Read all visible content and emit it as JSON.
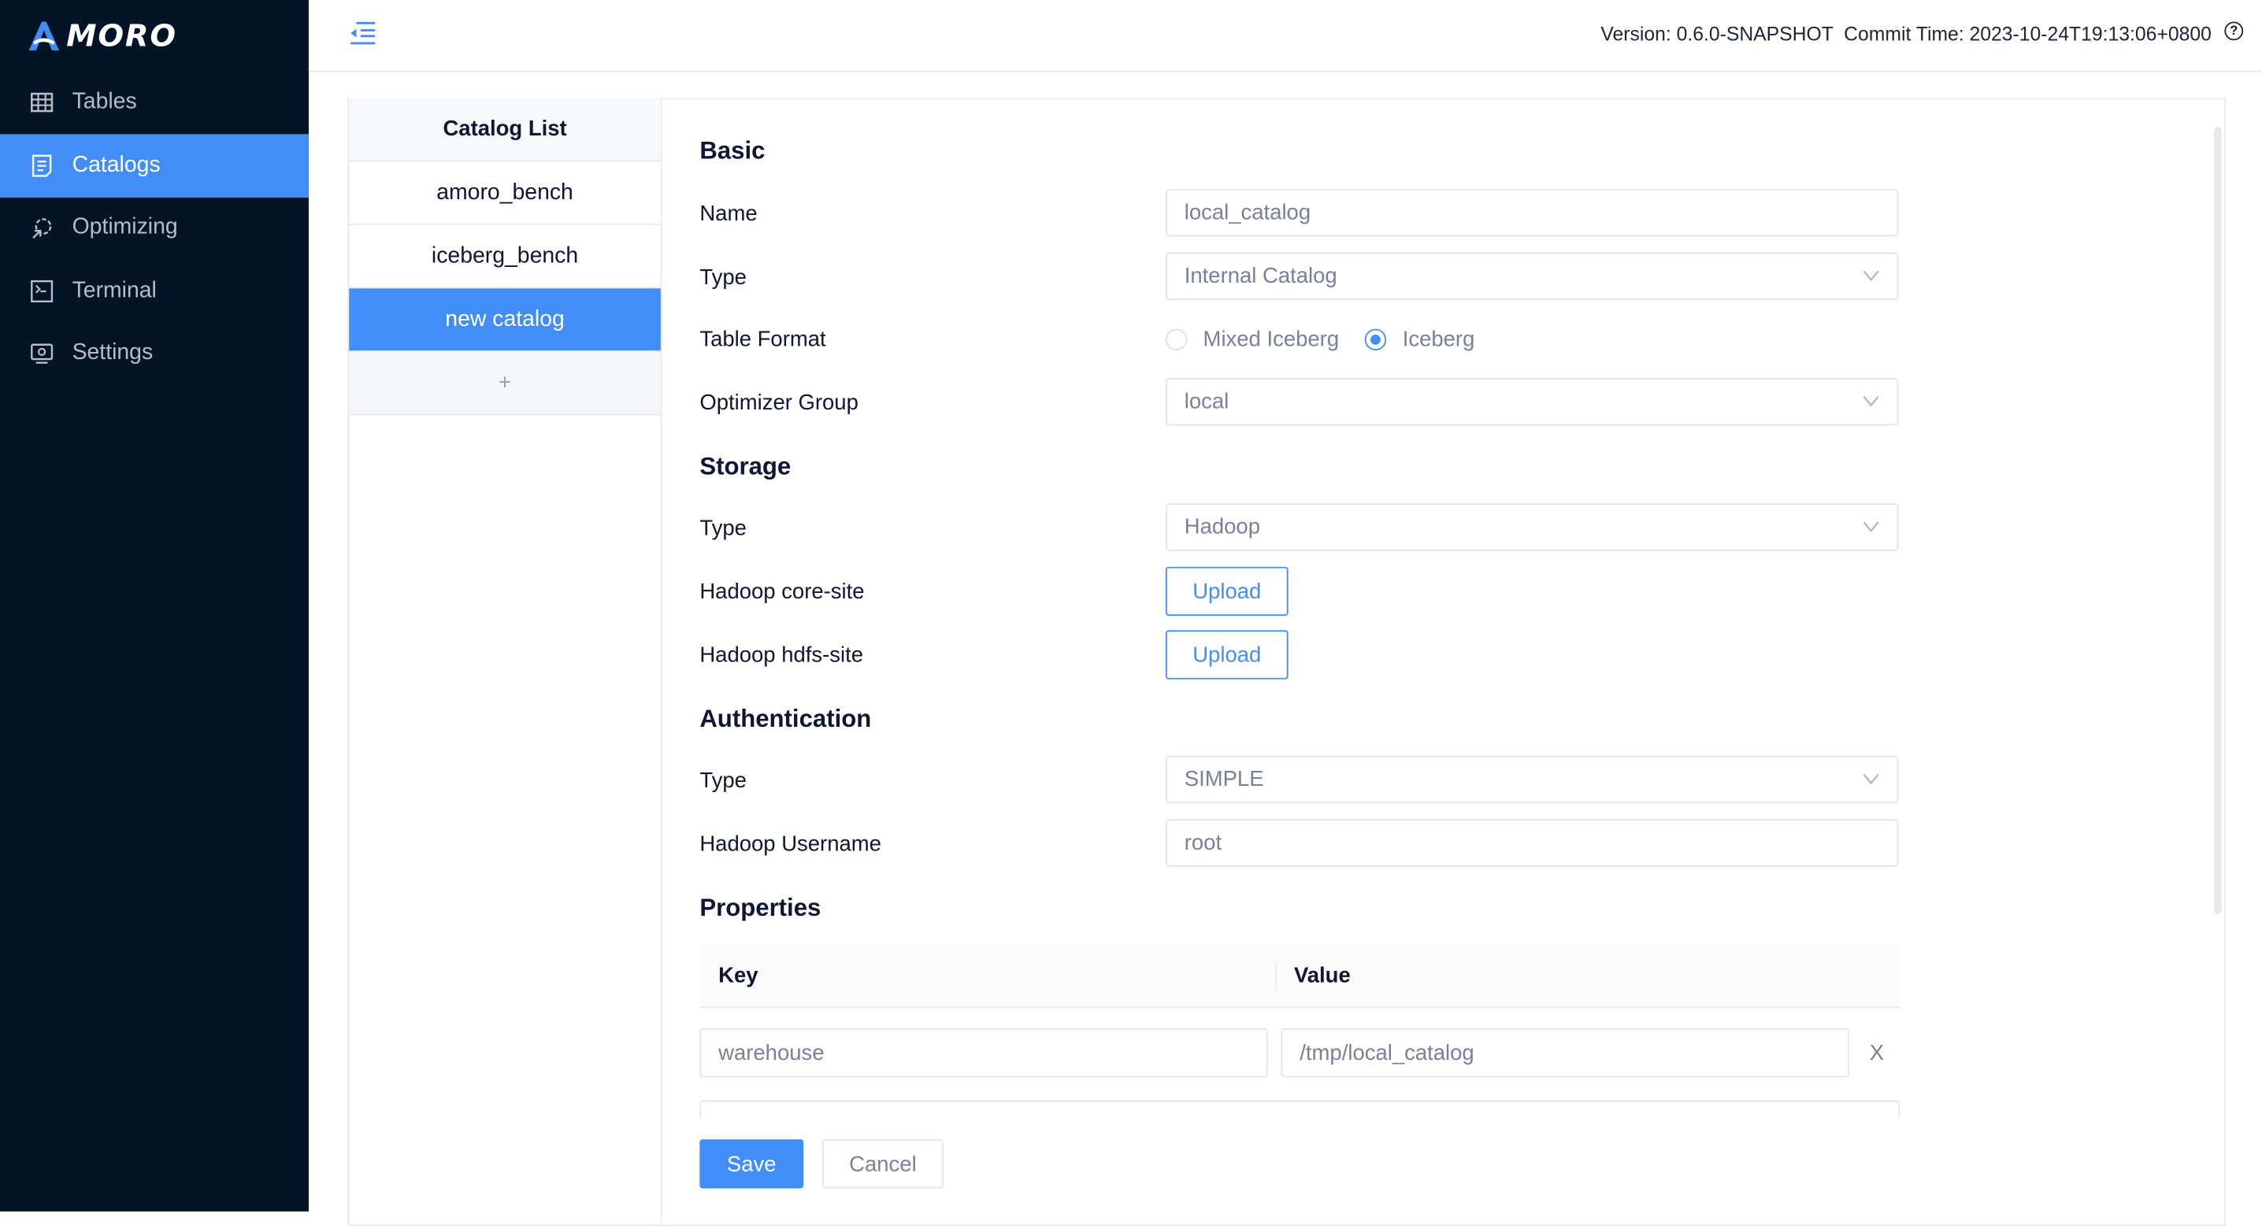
{
  "app": {
    "logo_text": "MORO",
    "brand_color": "#438df6",
    "sidebar_bg": "#041427"
  },
  "sidebar": {
    "items": [
      {
        "label": "Tables",
        "icon": "table-icon"
      },
      {
        "label": "Catalogs",
        "icon": "catalog-icon",
        "active": true
      },
      {
        "label": "Optimizing",
        "icon": "optimizing-gear-icon"
      },
      {
        "label": "Terminal",
        "icon": "terminal-icon"
      },
      {
        "label": "Settings",
        "icon": "settings-icon"
      }
    ]
  },
  "header": {
    "version": "Version: 0.6.0-SNAPSHOT",
    "commit_time": "Commit Time: 2023-10-24T19:13:06+0800",
    "help": "?"
  },
  "catalog_list": {
    "title": "Catalog List",
    "items": [
      "amoro_bench",
      "iceberg_bench",
      "new catalog"
    ],
    "selected": "new catalog",
    "add_label": "+"
  },
  "form": {
    "basic": {
      "title": "Basic",
      "name_label": "Name",
      "name_value": "local_catalog",
      "type_label": "Type",
      "type_value": "Internal Catalog",
      "format_label": "Table Format",
      "format_options": [
        "Mixed Iceberg",
        "Iceberg"
      ],
      "format_selected": "Iceberg",
      "optimizer_label": "Optimizer Group",
      "optimizer_value": "local"
    },
    "storage": {
      "title": "Storage",
      "type_label": "Type",
      "type_value": "Hadoop",
      "core_site_label": "Hadoop core-site",
      "hdfs_site_label": "Hadoop hdfs-site",
      "upload_label": "Upload"
    },
    "auth": {
      "title": "Authentication",
      "type_label": "Type",
      "type_value": "SIMPLE",
      "username_label": "Hadoop Username",
      "username_value": "root"
    },
    "properties": {
      "title": "Properties",
      "key_header": "Key",
      "value_header": "Value",
      "rows": [
        {
          "key": "warehouse",
          "value": "/tmp/local_catalog"
        }
      ],
      "remove": "X"
    },
    "save_label": "Save",
    "cancel_label": "Cancel"
  }
}
